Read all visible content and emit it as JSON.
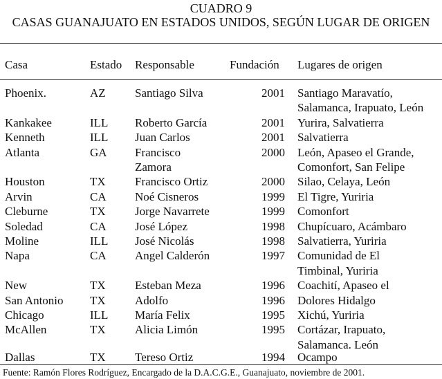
{
  "title": "CUADRO 9",
  "subtitle": "CASAS GUANAJUATO EN ESTADOS UNIDOS, SEGÚN LUGAR DE ORIGEN",
  "headers": [
    "Casa",
    "Estado",
    "Responsable",
    "Fundación",
    "Lugares de origen"
  ],
  "rows": [
    {
      "casa": "Phoenix.",
      "estado": "AZ",
      "responsable": [
        "Santiago Silva"
      ],
      "fundacion": "2001",
      "lugares": [
        "Santiago Maravatío,",
        "Salamanca, Irapuato, León"
      ]
    },
    {
      "casa": "Kankakee",
      "estado": "ILL",
      "responsable": [
        "Roberto García"
      ],
      "fundacion": "2001",
      "lugares": [
        "Yurira, Salvatierra"
      ]
    },
    {
      "casa": "Kenneth",
      "estado": "ILL",
      "responsable": [
        "Juan Carlos"
      ],
      "fundacion": "2001",
      "lugares": [
        "Salvatierra"
      ]
    },
    {
      "casa": "Atlanta",
      "estado": "GA",
      "responsable": [
        "Francisco",
        "Zamora"
      ],
      "fundacion": "2000",
      "lugares": [
        "León, Apaseo el Grande,",
        "Comonfort, San Felipe"
      ]
    },
    {
      "casa": "Houston",
      "estado": "TX",
      "responsable": [
        "Francisco Ortiz"
      ],
      "fundacion": "2000",
      "lugares": [
        "Silao, Celaya, León"
      ]
    },
    {
      "casa": "Arvin",
      "estado": "CA",
      "responsable": [
        "Noé Cisneros"
      ],
      "fundacion": "1999",
      "lugares": [
        "El Tigre, Yuriria"
      ]
    },
    {
      "casa": "Cleburne",
      "estado": "TX",
      "responsable": [
        "Jorge Navarrete"
      ],
      "fundacion": "1999",
      "lugares": [
        "Comonfort"
      ]
    },
    {
      "casa": "Soledad",
      "estado": "CA",
      "responsable": [
        "José López"
      ],
      "fundacion": "1998",
      "lugares": [
        "Chupícuaro, Acámbaro"
      ]
    },
    {
      "casa": "Moline",
      "estado": "ILL",
      "responsable": [
        "José Nicolás"
      ],
      "fundacion": "1998",
      "lugares": [
        "Salvatierra, Yuriria"
      ]
    },
    {
      "casa": "Napa",
      "estado": "CA",
      "responsable": [
        "Angel Calderón"
      ],
      "fundacion": "1997",
      "lugares": [
        "Comunidad de El",
        "Timbinal, Yuriria"
      ]
    },
    {
      "casa": "New",
      "estado": "TX",
      "responsable": [
        "Esteban Meza"
      ],
      "fundacion": "1996",
      "lugares": [
        "Coachití, Apaseo el"
      ]
    },
    {
      "casa": "San Antonio",
      "estado": "TX",
      "responsable": [
        "Adolfo"
      ],
      "fundacion": "1996",
      "lugares": [
        "Dolores Hidalgo"
      ]
    },
    {
      "casa": "Chicago",
      "estado": "ILL",
      "responsable": [
        "María Felix"
      ],
      "fundacion": "1995",
      "lugares": [
        "Xichú, Yuriria"
      ]
    },
    {
      "casa": "McAllen",
      "estado": "TX",
      "responsable": [
        "Alicia Limón"
      ],
      "fundacion": "1995",
      "lugares": [
        "Cortázar, Irapuato,",
        "Salamanca. León"
      ]
    },
    {
      "casa": "Dallas",
      "estado": "TX",
      "responsable": [
        "Tereso Ortiz"
      ],
      "fundacion": "1994",
      "lugares": [
        "Ocampo"
      ]
    }
  ],
  "footnote": "Fuente: Ramón Flores Rodríguez, Encargado de la D.A.C.G.E., Guanajuato, noviembre de 2001."
}
